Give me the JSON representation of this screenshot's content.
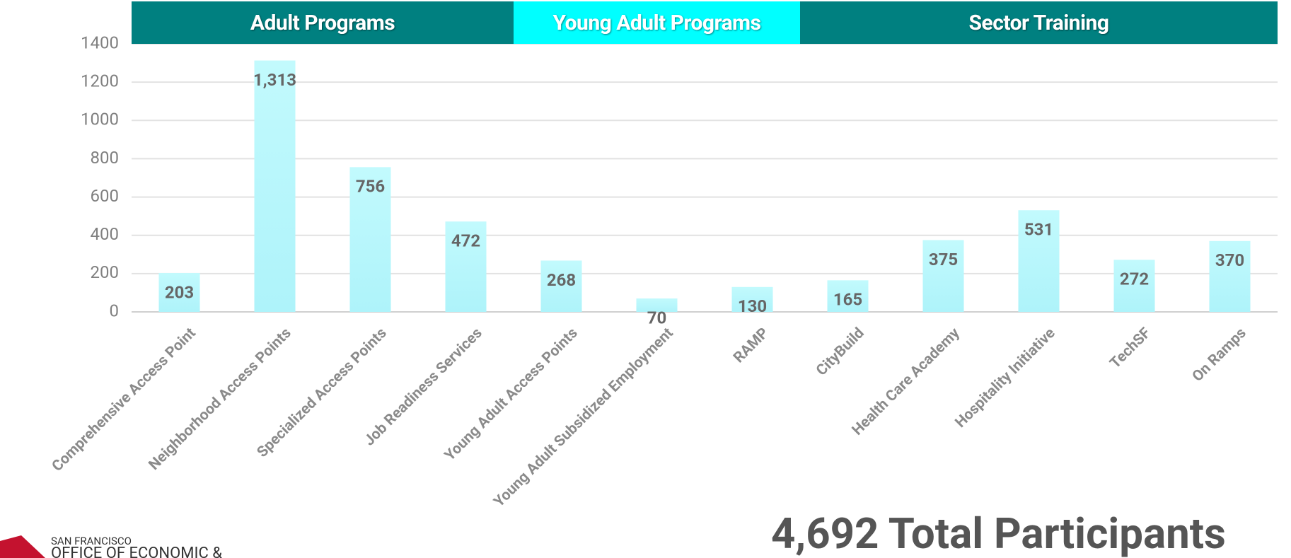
{
  "chart_data": {
    "type": "bar",
    "groups": [
      {
        "name": "Adult Programs",
        "color": "#008080",
        "start": 0,
        "end": 3
      },
      {
        "name": "Young Adult Programs",
        "color": "#00ffff",
        "start": 4,
        "end": 6
      },
      {
        "name": "Sector Training",
        "color": "#008080",
        "start": 7,
        "end": 11
      }
    ],
    "categories": [
      "Comprehensive Access Point",
      "Neighborhood Access Points",
      "Specialized Access Points",
      "Job Readiness Services",
      "Young Adult Access Points",
      "Young Adult Subsidized Employment",
      "RAMP",
      "CityBuild",
      "Health Care Academy",
      "Hospitality Initiative",
      "TechSF",
      "On Ramps"
    ],
    "values": [
      203,
      1313,
      756,
      472,
      268,
      70,
      130,
      165,
      375,
      531,
      272,
      370
    ],
    "value_labels": [
      "203",
      "1,313",
      "756",
      "472",
      "268",
      "70",
      "130",
      "165",
      "375",
      "531",
      "272",
      "370"
    ],
    "color": "#b6f6fb",
    "ylim": [
      0,
      1400
    ],
    "yticks": [
      0,
      200,
      400,
      600,
      800,
      1000,
      1200,
      1400
    ],
    "grid": true,
    "total": "4,692 Total Participants",
    "logo": {
      "line1": "SAN FRANCISCO",
      "line2": "OFFICE OF ECONOMIC &"
    }
  }
}
